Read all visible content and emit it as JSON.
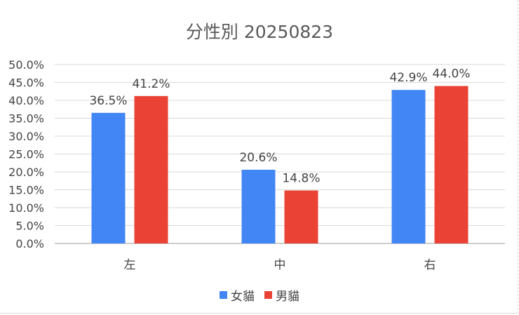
{
  "chart_data": {
    "type": "bar",
    "title": "分性別 20250823",
    "xlabel": "",
    "ylabel": "",
    "categories": [
      "左",
      "中",
      "右"
    ],
    "series": [
      {
        "name": "女貓",
        "color": "#4285F4",
        "values": [
          36.5,
          20.6,
          42.9
        ],
        "labels": [
          "36.5%",
          "20.6%",
          "42.9%"
        ]
      },
      {
        "name": "男貓",
        "color": "#EA4335",
        "values": [
          41.2,
          14.8,
          44.0
        ],
        "labels": [
          "41.2%",
          "14.8%",
          "44.0%"
        ]
      }
    ],
    "ylim": [
      0,
      50
    ],
    "yticks": [
      "0.0%",
      "5.0%",
      "10.0%",
      "15.0%",
      "20.0%",
      "25.0%",
      "30.0%",
      "35.0%",
      "40.0%",
      "45.0%",
      "50.0%"
    ],
    "grid": true,
    "legend_position": "bottom"
  }
}
